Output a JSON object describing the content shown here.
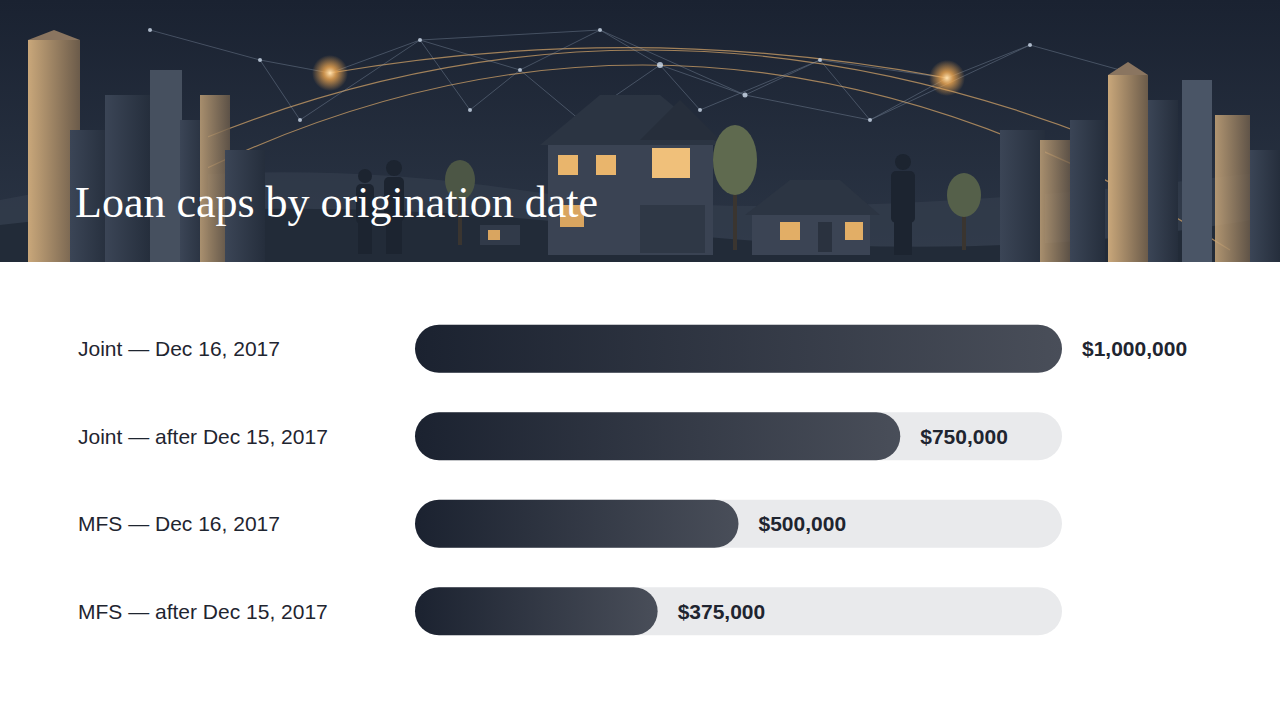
{
  "chart_data": {
    "type": "bar",
    "title": "Loan caps by origination date",
    "orientation": "horizontal",
    "categories": [
      "Joint — Dec 16, 2017",
      "Joint — after Dec 15, 2017",
      "MFS — Dec 16, 2017",
      "MFS — after Dec 15, 2017"
    ],
    "values": [
      1000000,
      750000,
      500000,
      375000
    ],
    "value_labels": [
      "$1,000,000",
      "$750,000",
      "$500,000",
      "$375,000"
    ],
    "color": "#1b2230",
    "xlim": [
      0,
      1000000
    ],
    "data_labels": true,
    "tick_labels": "y",
    "grid": false
  }
}
